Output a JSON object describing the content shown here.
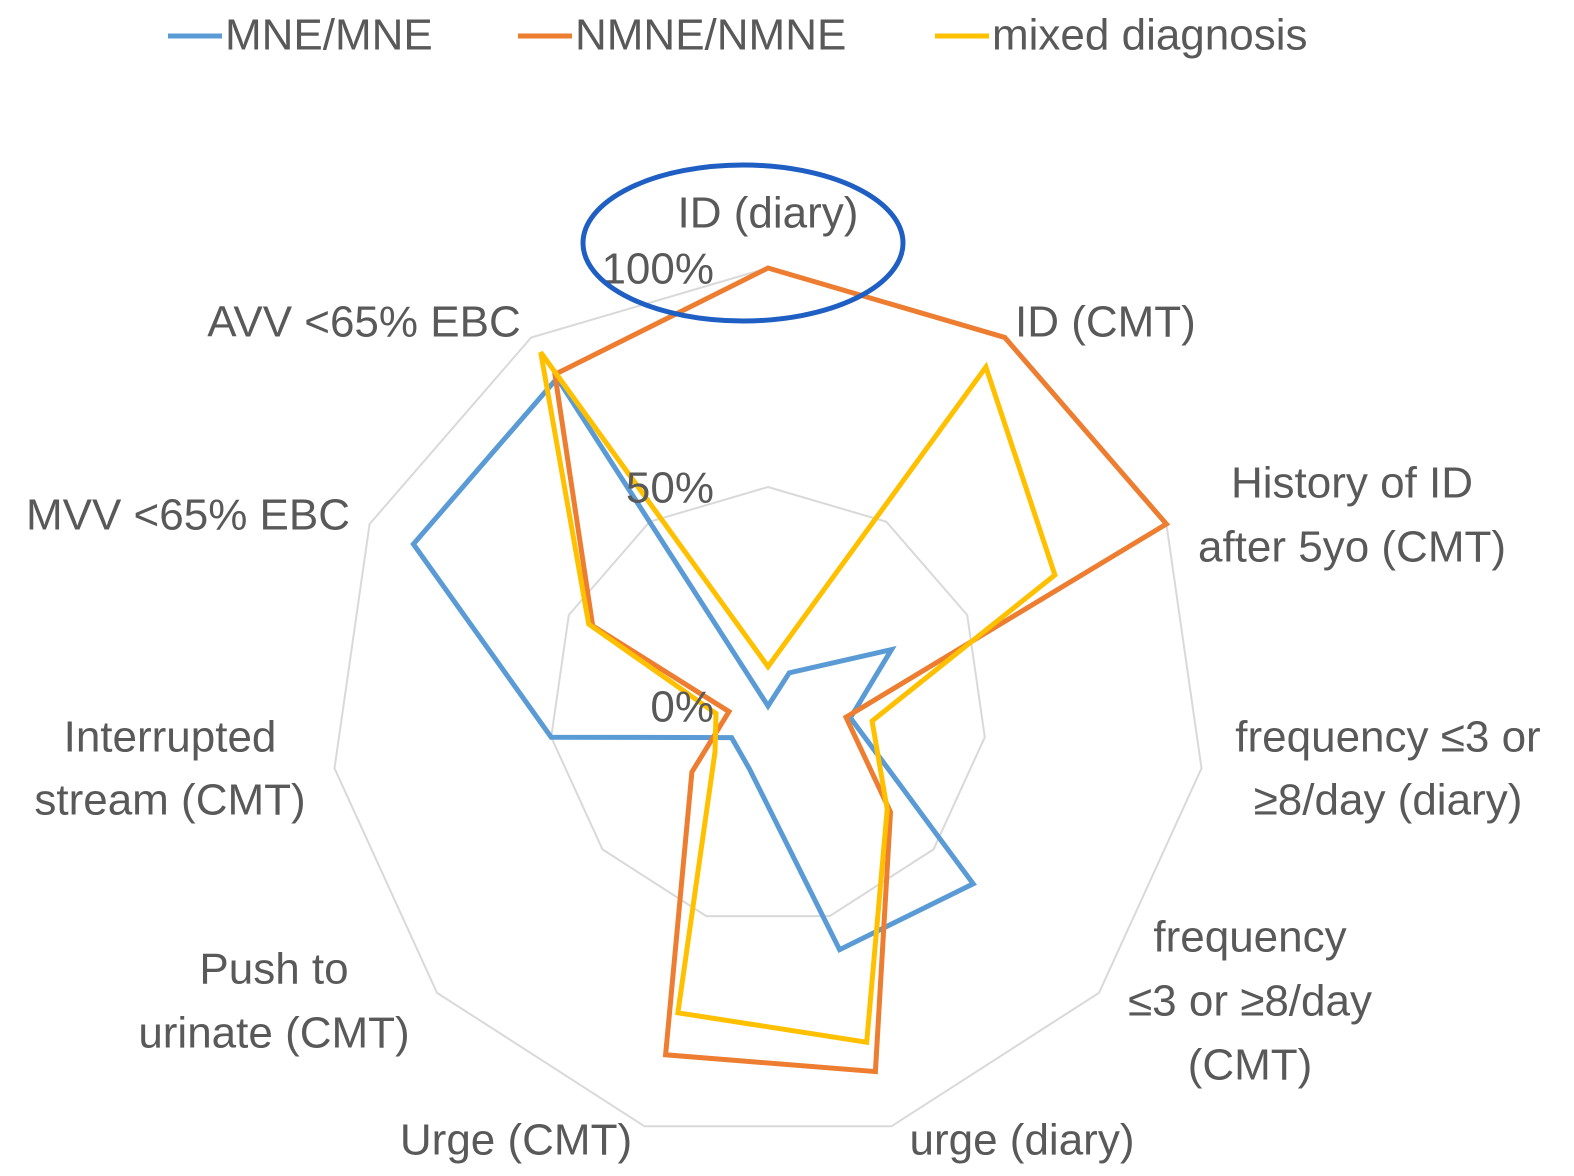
{
  "chart_data": {
    "type": "radar",
    "categories": [
      [
        "ID (diary)"
      ],
      [
        "ID (CMT)"
      ],
      [
        "History of ID",
        "after 5yo (CMT)"
      ],
      [
        "frequency ≤3 or",
        "≥8/day (diary)"
      ],
      [
        "frequency",
        "≤3 or ≥8/day",
        "(CMT)"
      ],
      [
        "urge (diary)"
      ],
      [
        "Urge (CMT)"
      ],
      [
        "Push to",
        "urinate (CMT)"
      ],
      [
        "Interrupted",
        "stream (CMT)"
      ],
      [
        "MVV <65% EBC"
      ],
      [
        "AVV <65% EBC"
      ]
    ],
    "series": [
      {
        "name": "MNE/MNE",
        "color": "#5b9bd5",
        "values": [
          0,
          9,
          31,
          19,
          62,
          58,
          15,
          11,
          50,
          89,
          89
        ]
      },
      {
        "name": "NMNE/NMNE",
        "color": "#ed7d31",
        "values": [
          100,
          100,
          100,
          18,
          37,
          87,
          83,
          23,
          9,
          44,
          90
        ]
      },
      {
        "name": "mixed diagnosis",
        "color": "#ffc000",
        "values": [
          9,
          92,
          72,
          24,
          36,
          80,
          73,
          16,
          12,
          45,
          96
        ]
      }
    ],
    "ylim": [
      0,
      100
    ],
    "yticks": [
      {
        "value": 0,
        "label": "0%"
      },
      {
        "value": 50,
        "label": "50%"
      },
      {
        "value": 100,
        "label": "100%"
      }
    ],
    "grid": true,
    "legend": "top"
  }
}
